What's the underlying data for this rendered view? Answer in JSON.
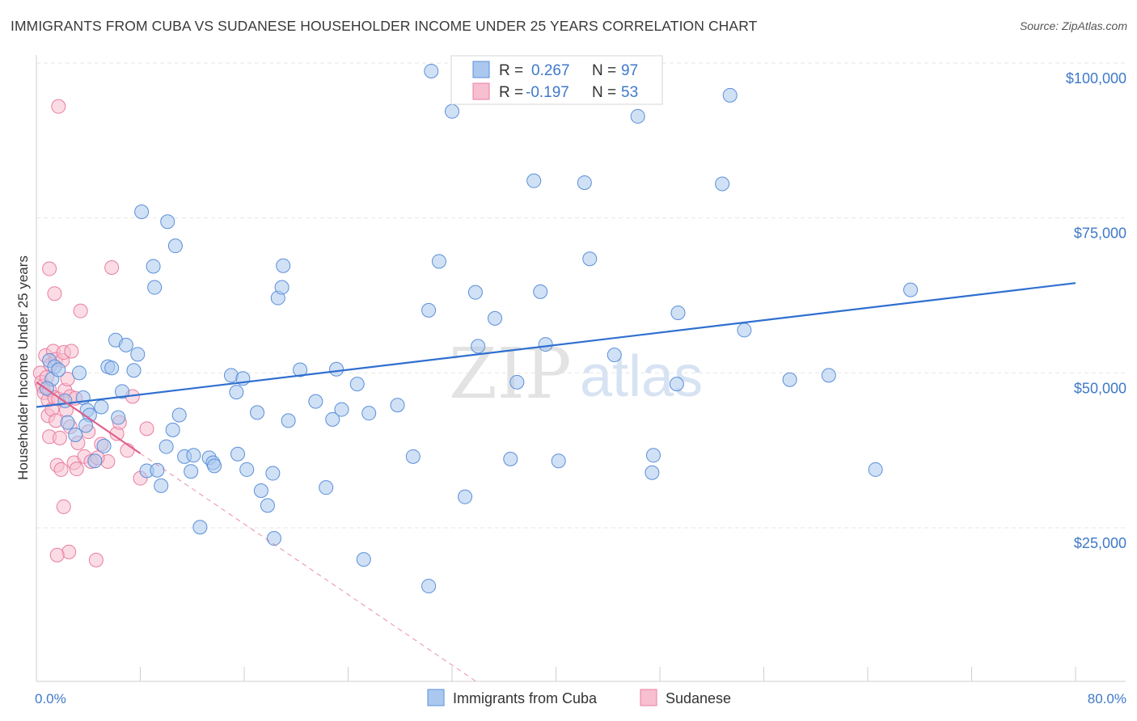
{
  "title": "IMMIGRANTS FROM CUBA VS SUDANESE HOUSEHOLDER INCOME UNDER 25 YEARS CORRELATION CHART",
  "source": "Source: ZipAtlas.com",
  "watermark": {
    "zip": "ZIP",
    "atlas": "atlas"
  },
  "colors": {
    "cuba_fill": "#aac8ef",
    "cuba_stroke": "#5b8fd8",
    "cuba_line": "#2f6fd0",
    "sudanese_fill": "#f7bfd0",
    "sudanese_stroke": "#e87da0",
    "sudanese_line": "#e0608a",
    "tick": "#3f79c9",
    "grid": "#e6e6e6"
  },
  "legend": {
    "row1": {
      "r_label": "R =",
      "r_value": "0.267",
      "n_label": "N =",
      "n_value": "97"
    },
    "row2": {
      "r_label": "R =",
      "r_value": "-0.197",
      "n_label": "N =",
      "n_value": "53"
    }
  },
  "bottom_legend": [
    "Immigrants from Cuba",
    "Sudanese"
  ],
  "chart_data": {
    "type": "scatter",
    "xlabel": "",
    "ylabel": "Householder Income Under 25 years",
    "xlim": [
      0,
      80
    ],
    "ylim": [
      0,
      105000
    ],
    "x_tick_labels": [
      "0.0%",
      "80.0%"
    ],
    "y_ticks": [
      25000,
      50000,
      75000,
      100000
    ],
    "y_tick_labels": [
      "$25,000",
      "$50,000",
      "$75,000",
      "$100,000"
    ],
    "grid": true,
    "series": [
      {
        "name": "Immigrants from Cuba",
        "R": 0.267,
        "N": 97,
        "trend": {
          "x": [
            0,
            80
          ],
          "y": [
            44500,
            64500
          ]
        },
        "points": [
          [
            1,
            52000
          ],
          [
            1.2,
            49000
          ],
          [
            1.4,
            51000
          ],
          [
            1.7,
            50500
          ],
          [
            2.2,
            45500
          ],
          [
            2.4,
            42000
          ],
          [
            3,
            40000
          ],
          [
            3.3,
            50000
          ],
          [
            3.6,
            46000
          ],
          [
            3.9,
            44000
          ],
          [
            4.1,
            43200
          ],
          [
            4.5,
            35800
          ],
          [
            5,
            44500
          ],
          [
            5.2,
            38200
          ],
          [
            5.5,
            51000
          ],
          [
            5.8,
            50800
          ],
          [
            6.1,
            55300
          ],
          [
            6.3,
            42800
          ],
          [
            6.6,
            47000
          ],
          [
            6.9,
            54500
          ],
          [
            7.5,
            50400
          ],
          [
            7.8,
            53000
          ],
          [
            8.1,
            76000
          ],
          [
            8.5,
            34200
          ],
          [
            9,
            67200
          ],
          [
            9.1,
            63800
          ],
          [
            9.6,
            31800
          ],
          [
            10,
            38100
          ],
          [
            10.1,
            74400
          ],
          [
            10.5,
            40800
          ],
          [
            10.7,
            70500
          ],
          [
            11,
            43200
          ],
          [
            11.4,
            36500
          ],
          [
            11.9,
            34100
          ],
          [
            12.1,
            36700
          ],
          [
            12.6,
            25100
          ],
          [
            13.3,
            36300
          ],
          [
            13.6,
            35500
          ],
          [
            13.7,
            35000
          ],
          [
            15,
            49600
          ],
          [
            15.4,
            46900
          ],
          [
            15.5,
            36900
          ],
          [
            15.9,
            49100
          ],
          [
            16.2,
            34400
          ],
          [
            17,
            43600
          ],
          [
            17.3,
            31000
          ],
          [
            17.8,
            28600
          ],
          [
            18.3,
            23300
          ],
          [
            18.6,
            62100
          ],
          [
            18.9,
            63800
          ],
          [
            19,
            67300
          ],
          [
            19.4,
            42300
          ],
          [
            20.3,
            50500
          ],
          [
            21.5,
            45400
          ],
          [
            22.3,
            31500
          ],
          [
            22.8,
            42500
          ],
          [
            23.1,
            50600
          ],
          [
            23.5,
            44100
          ],
          [
            24.7,
            48200
          ],
          [
            25.2,
            19900
          ],
          [
            25.6,
            43500
          ],
          [
            27.8,
            44800
          ],
          [
            29,
            36500
          ],
          [
            30.2,
            60100
          ],
          [
            30.4,
            98700
          ],
          [
            31,
            68000
          ],
          [
            32,
            92200
          ],
          [
            33,
            30000
          ],
          [
            33.8,
            63000
          ],
          [
            34,
            54300
          ],
          [
            35.3,
            58800
          ],
          [
            36.5,
            36100
          ],
          [
            37,
            48500
          ],
          [
            38.3,
            81000
          ],
          [
            38.8,
            63100
          ],
          [
            39.2,
            54600
          ],
          [
            40.2,
            35800
          ],
          [
            42.2,
            80700
          ],
          [
            42.6,
            68400
          ],
          [
            44.5,
            52900
          ],
          [
            46.3,
            91400
          ],
          [
            47.4,
            33900
          ],
          [
            47.5,
            36700
          ],
          [
            49.3,
            48200
          ],
          [
            49.4,
            59700
          ],
          [
            52.8,
            80500
          ],
          [
            53.4,
            94800
          ],
          [
            54.5,
            56900
          ],
          [
            58,
            48900
          ],
          [
            61,
            49600
          ],
          [
            64.6,
            34400
          ],
          [
            67.3,
            63400
          ],
          [
            0.8,
            47500
          ],
          [
            3.8,
            41500
          ],
          [
            9.3,
            34300
          ],
          [
            18.2,
            33800
          ],
          [
            30.2,
            15600
          ]
        ]
      },
      {
        "name": "Sudanese",
        "R": -0.197,
        "N": 53,
        "trend": {
          "x": [
            0,
            8
          ],
          "y": [
            48500,
            37000
          ]
        },
        "trend_extension": {
          "x": [
            8,
            34
          ],
          "y": [
            37000,
            0
          ]
        },
        "points": [
          [
            0.3,
            50000
          ],
          [
            0.4,
            48500
          ],
          [
            0.5,
            47800
          ],
          [
            0.6,
            46800
          ],
          [
            0.7,
            52800
          ],
          [
            0.8,
            49300
          ],
          [
            0.9,
            45600
          ],
          [
            0.9,
            43100
          ],
          [
            1,
            39700
          ],
          [
            1,
            47300
          ],
          [
            1.1,
            51300
          ],
          [
            1.2,
            44100
          ],
          [
            1.3,
            53500
          ],
          [
            1.4,
            46000
          ],
          [
            1.5,
            42300
          ],
          [
            1.5,
            52200
          ],
          [
            1.6,
            35100
          ],
          [
            1.7,
            45800
          ],
          [
            1.7,
            93000
          ],
          [
            1.8,
            39500
          ],
          [
            1.9,
            34400
          ],
          [
            2,
            52000
          ],
          [
            2.1,
            28400
          ],
          [
            2.1,
            53300
          ],
          [
            2.2,
            47200
          ],
          [
            2.3,
            44000
          ],
          [
            2.4,
            49000
          ],
          [
            2.5,
            21100
          ],
          [
            2.6,
            46200
          ],
          [
            2.6,
            41300
          ],
          [
            2.7,
            53500
          ],
          [
            2.9,
            35500
          ],
          [
            3,
            45900
          ],
          [
            3.2,
            38700
          ],
          [
            3.4,
            60000
          ],
          [
            3.7,
            36500
          ],
          [
            4,
            40500
          ],
          [
            4.2,
            35700
          ],
          [
            4.6,
            19800
          ],
          [
            5,
            38500
          ],
          [
            5.5,
            35700
          ],
          [
            5.8,
            67000
          ],
          [
            6.2,
            40200
          ],
          [
            6.4,
            42000
          ],
          [
            7,
            37500
          ],
          [
            7.4,
            46200
          ],
          [
            8,
            33000
          ],
          [
            8.5,
            41000
          ],
          [
            1,
            66800
          ],
          [
            1.4,
            62800
          ],
          [
            1.6,
            20600
          ],
          [
            3.1,
            34500
          ],
          [
            4.7,
            36300
          ]
        ]
      }
    ]
  }
}
